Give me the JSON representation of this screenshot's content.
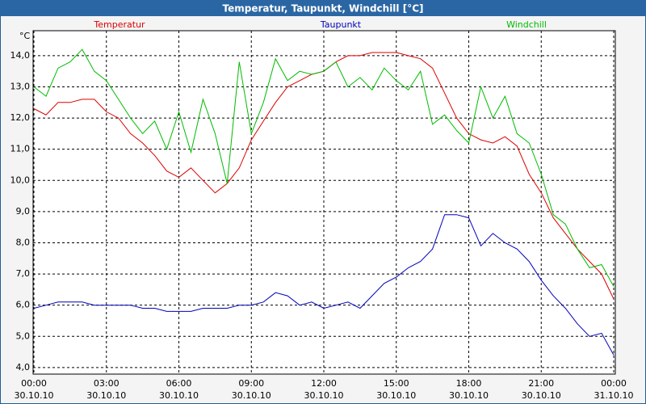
{
  "chart_data": {
    "type": "line",
    "title": "Temperatur, Taupunkt, Windchill [°C]",
    "ylabel": "°C",
    "x": [
      0,
      0.5,
      1,
      1.5,
      2,
      2.5,
      3,
      3.5,
      4,
      4.5,
      5,
      5.5,
      6,
      6.5,
      7,
      7.5,
      8,
      8.5,
      9,
      9.5,
      10,
      10.5,
      11,
      11.5,
      12,
      12.5,
      13,
      13.5,
      14,
      14.5,
      15,
      15.5,
      16,
      16.5,
      17,
      17.5,
      18,
      18.5,
      19,
      19.5,
      20,
      20.5,
      21,
      21.5,
      22,
      22.5,
      23,
      23.5,
      24
    ],
    "series": [
      {
        "name": "Temperatur",
        "color": "#dd0000",
        "values": [
          12.3,
          12.1,
          12.5,
          12.5,
          12.6,
          12.6,
          12.2,
          12.0,
          11.5,
          11.2,
          10.8,
          10.3,
          10.1,
          10.4,
          10.0,
          9.6,
          9.9,
          10.4,
          11.3,
          11.9,
          12.5,
          13.0,
          13.2,
          13.4,
          13.5,
          13.8,
          14.0,
          14.0,
          14.1,
          14.1,
          14.1,
          14.0,
          13.9,
          13.6,
          12.8,
          12.0,
          11.5,
          11.3,
          11.2,
          11.4,
          11.1,
          10.2,
          9.6,
          8.8,
          8.3,
          7.8,
          7.4,
          7.0,
          6.2
        ]
      },
      {
        "name": "Taupunkt",
        "color": "#0000bb",
        "values": [
          5.9,
          6.0,
          6.1,
          6.1,
          6.1,
          6.0,
          6.0,
          6.0,
          6.0,
          5.9,
          5.9,
          5.8,
          5.8,
          5.8,
          5.9,
          5.9,
          5.9,
          6.0,
          6.0,
          6.1,
          6.4,
          6.3,
          6.0,
          6.1,
          5.9,
          6.0,
          6.1,
          5.9,
          6.3,
          6.7,
          6.9,
          7.2,
          7.4,
          7.8,
          8.9,
          8.9,
          8.8,
          7.9,
          8.3,
          8.0,
          7.8,
          7.4,
          6.8,
          6.3,
          5.9,
          5.4,
          5.0,
          5.1,
          4.4
        ]
      },
      {
        "name": "Windchill",
        "color": "#00bb00",
        "values": [
          13.0,
          12.7,
          13.6,
          13.8,
          14.2,
          13.5,
          13.2,
          12.6,
          12.0,
          11.5,
          11.9,
          11.0,
          12.2,
          10.9,
          12.6,
          11.5,
          9.9,
          13.8,
          11.5,
          12.5,
          13.9,
          13.2,
          13.5,
          13.4,
          13.5,
          13.8,
          13.0,
          13.3,
          12.9,
          13.6,
          13.2,
          12.9,
          13.5,
          11.8,
          12.1,
          11.6,
          11.2,
          13.0,
          12.0,
          12.7,
          11.5,
          11.2,
          10.2,
          8.9,
          8.6,
          7.8,
          7.2,
          7.3,
          6.6
        ]
      }
    ],
    "xlim": [
      0,
      24
    ],
    "xticks": [
      {
        "value": 0,
        "label": "00:00"
      },
      {
        "value": 3,
        "label": "03:00"
      },
      {
        "value": 6,
        "label": "06:00"
      },
      {
        "value": 9,
        "label": "09:00"
      },
      {
        "value": 12,
        "label": "12:00"
      },
      {
        "value": 15,
        "label": "15:00"
      },
      {
        "value": 18,
        "label": "18:00"
      },
      {
        "value": 21,
        "label": "21:00"
      },
      {
        "value": 24,
        "label": "00:00"
      }
    ],
    "xtick_dates": [
      "30.10.10",
      "30.10.10",
      "30.10.10",
      "30.10.10",
      "30.10.10",
      "30.10.10",
      "30.10.10",
      "30.10.10",
      "31.10.10"
    ],
    "ylim": [
      3.8,
      14.8
    ],
    "yticks": [
      {
        "value": 4,
        "label": "4,0"
      },
      {
        "value": 5,
        "label": "5,0"
      },
      {
        "value": 6,
        "label": "6,0"
      },
      {
        "value": 7,
        "label": "7,0"
      },
      {
        "value": 8,
        "label": "8,0"
      },
      {
        "value": 9,
        "label": "9,0"
      },
      {
        "value": 10,
        "label": "10,0"
      },
      {
        "value": 11,
        "label": "11,0"
      },
      {
        "value": 12,
        "label": "12,0"
      },
      {
        "value": 13,
        "label": "13,0"
      },
      {
        "value": 14,
        "label": "14,0"
      }
    ],
    "grid": true
  }
}
